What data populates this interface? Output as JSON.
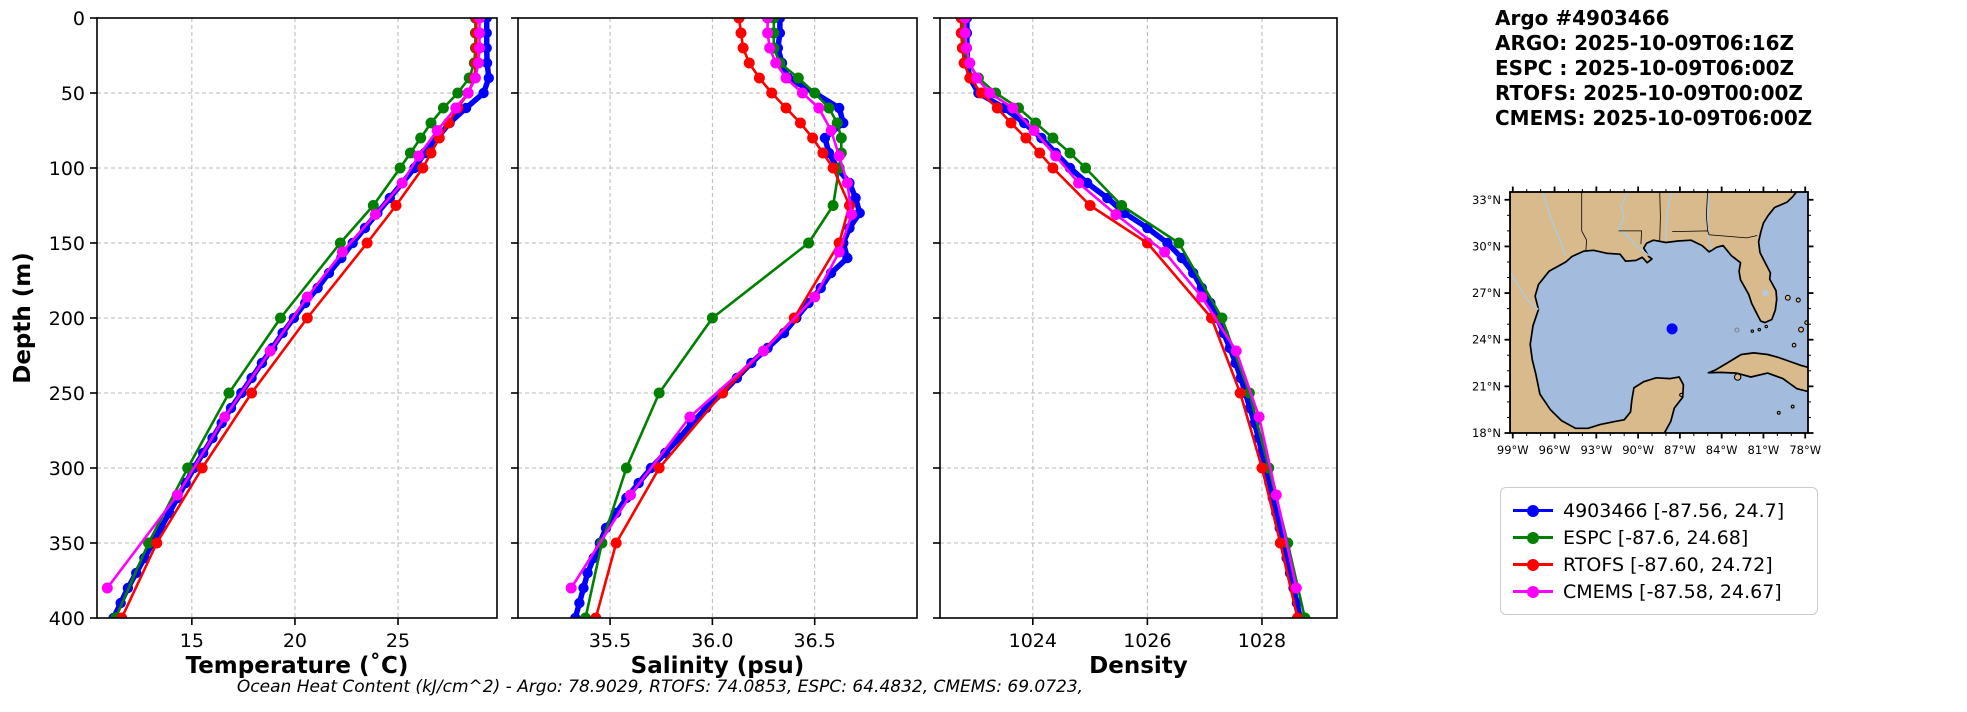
{
  "header": {
    "title": "Argo #4903466",
    "lines": [
      "ARGO: 2025-10-09T06:16Z",
      "ESPC : 2025-10-09T06:00Z",
      "RTOFS: 2025-10-09T00:00Z",
      "CMEMS: 2025-10-09T06:00Z"
    ]
  },
  "footer": "Ocean Heat Content (kJ/cm^2) - Argo: 78.9029,  RTOFS: 74.0853,  ESPC: 64.4832,  CMEMS: 69.0723,",
  "colors": {
    "argo": "#0000ff",
    "espc": "#008000",
    "rtofs": "#ff0000",
    "cmems": "#ff00ff",
    "grid": "#b8b8b8",
    "spine": "#000000",
    "land": "#d9ba8c",
    "water": "#a3bbdc",
    "lake": "#b7c9de",
    "river": "#a9cce3"
  },
  "depth_levels": {
    "argo": [
      0,
      10,
      20,
      30,
      40,
      50,
      60,
      70,
      80,
      90,
      100,
      110,
      120,
      130,
      140,
      150,
      160,
      170,
      180,
      190,
      200,
      210,
      220,
      230,
      240,
      250,
      260,
      270,
      280,
      290,
      300,
      310,
      320,
      330,
      340,
      350,
      360,
      370,
      380,
      390,
      400
    ],
    "model": [
      0,
      10,
      20,
      30,
      40,
      50,
      60,
      70,
      80,
      90,
      100,
      125,
      150,
      200,
      250,
      300,
      350,
      400
    ],
    "cmems": [
      0,
      10,
      20,
      30,
      40,
      50,
      60,
      75,
      92,
      110,
      131,
      156,
      186,
      222,
      266,
      318,
      380
    ]
  },
  "chart_data": [
    {
      "type": "line",
      "xlabel": "Temperature (˚C)",
      "ylabel": "Depth (m)",
      "xlim": [
        10.4,
        29.8
      ],
      "ylim": [
        0,
        400
      ],
      "xticks": [
        15,
        20,
        25
      ],
      "xtick_labels": [
        "15",
        "20",
        "25"
      ],
      "yticks": [
        0,
        50,
        100,
        150,
        200,
        250,
        300,
        350,
        400
      ],
      "ytick_labels": [
        "0",
        "50",
        "100",
        "150",
        "200",
        "250",
        "300",
        "350",
        "400"
      ],
      "show_ytick_labels": true,
      "series": [
        {
          "name": "4903466",
          "key": "argo",
          "levels": "argo",
          "color": "#0000ff",
          "lw": 5.5,
          "marker_r": 5.2,
          "values": [
            29.3,
            29.3,
            29.3,
            29.32,
            29.4,
            29.15,
            28.3,
            27.5,
            26.9,
            26.3,
            25.8,
            25.2,
            24.6,
            24.0,
            23.4,
            22.8,
            22.25,
            21.65,
            21.1,
            20.5,
            19.95,
            19.4,
            18.9,
            18.4,
            17.9,
            17.4,
            16.9,
            16.45,
            16.0,
            15.55,
            15.1,
            14.7,
            14.3,
            13.9,
            13.5,
            13.1,
            12.7,
            12.3,
            11.9,
            11.55,
            11.2
          ]
        },
        {
          "name": "ESPC",
          "key": "espc",
          "levels": "model",
          "color": "#008000",
          "lw": 2.6,
          "marker_r": 5.5,
          "values": [
            28.75,
            28.75,
            28.75,
            28.7,
            28.45,
            27.9,
            27.2,
            26.6,
            26.1,
            25.6,
            25.1,
            23.8,
            22.2,
            19.3,
            16.8,
            14.8,
            12.9,
            11.3
          ]
        },
        {
          "name": "RTOFS",
          "key": "rtofs",
          "levels": "model",
          "color": "#ff0000",
          "lw": 2.6,
          "marker_r": 5.5,
          "values": [
            28.8,
            28.8,
            28.8,
            28.78,
            28.7,
            28.4,
            27.9,
            27.45,
            27.0,
            26.6,
            26.2,
            24.9,
            23.5,
            20.6,
            17.9,
            15.5,
            13.3,
            11.6
          ]
        },
        {
          "name": "CMEMS",
          "key": "cmems",
          "levels": "cmems",
          "color": "#ff00ff",
          "lw": 2.6,
          "marker_r": 5.5,
          "values": [
            28.95,
            28.95,
            28.95,
            28.9,
            28.75,
            28.4,
            27.8,
            26.9,
            26.0,
            25.2,
            23.9,
            22.3,
            20.6,
            18.8,
            16.6,
            14.3,
            10.9
          ]
        }
      ]
    },
    {
      "type": "line",
      "xlabel": "Salinity (psu)",
      "ylabel": "",
      "xlim": [
        35.05,
        37.0
      ],
      "ylim": [
        0,
        400
      ],
      "xticks": [
        35.5,
        36.0,
        36.5
      ],
      "xtick_labels": [
        "35.5",
        "36.0",
        "36.5"
      ],
      "yticks": [
        0,
        50,
        100,
        150,
        200,
        250,
        300,
        350,
        400
      ],
      "ytick_labels": [],
      "show_ytick_labels": false,
      "series": [
        {
          "name": "4903466",
          "key": "argo",
          "levels": "argo",
          "color": "#0000ff",
          "lw": 5.5,
          "marker_r": 5.2,
          "values": [
            36.33,
            36.33,
            36.32,
            36.34,
            36.37,
            36.5,
            36.62,
            36.64,
            36.55,
            36.57,
            36.61,
            36.67,
            36.7,
            36.72,
            36.67,
            36.64,
            36.66,
            36.58,
            36.53,
            36.47,
            36.41,
            36.35,
            36.27,
            36.19,
            36.12,
            36.05,
            35.97,
            35.9,
            35.84,
            35.77,
            35.7,
            35.64,
            35.58,
            35.53,
            35.48,
            35.45,
            35.42,
            35.39,
            35.37,
            35.35,
            35.33
          ]
        },
        {
          "name": "ESPC",
          "key": "espc",
          "levels": "model",
          "color": "#008000",
          "lw": 2.6,
          "marker_r": 5.5,
          "values": [
            36.3,
            36.3,
            36.3,
            36.33,
            36.42,
            36.5,
            36.57,
            36.61,
            36.63,
            36.63,
            36.62,
            36.59,
            36.47,
            36.0,
            35.74,
            35.58,
            35.46,
            35.38
          ]
        },
        {
          "name": "RTOFS",
          "key": "rtofs",
          "levels": "model",
          "color": "#ff0000",
          "lw": 2.6,
          "marker_r": 5.5,
          "values": [
            36.13,
            36.14,
            36.15,
            36.18,
            36.23,
            36.29,
            36.36,
            36.43,
            36.49,
            36.54,
            36.59,
            36.67,
            36.62,
            36.4,
            36.05,
            35.74,
            35.53,
            35.43
          ]
        },
        {
          "name": "CMEMS",
          "key": "cmems",
          "levels": "cmems",
          "color": "#ff00ff",
          "lw": 2.6,
          "marker_r": 5.5,
          "values": [
            36.27,
            36.27,
            36.28,
            36.31,
            36.36,
            36.44,
            36.52,
            36.58,
            36.62,
            36.66,
            36.68,
            36.62,
            36.5,
            36.25,
            35.89,
            35.6,
            35.31
          ]
        }
      ]
    },
    {
      "type": "line",
      "xlabel": "Density",
      "ylabel": "",
      "xlim": [
        1022.38,
        1029.31
      ],
      "ylim": [
        0,
        400
      ],
      "xticks": [
        1024,
        1026,
        1028
      ],
      "xtick_labels": [
        "1024",
        "1026",
        "1028"
      ],
      "yticks": [
        0,
        50,
        100,
        150,
        200,
        250,
        300,
        350,
        400
      ],
      "ytick_labels": [],
      "show_ytick_labels": false,
      "series": [
        {
          "name": "4903466",
          "key": "argo",
          "levels": "argo",
          "color": "#0000ff",
          "lw": 5.5,
          "marker_r": 5.2,
          "values": [
            1022.85,
            1022.85,
            1022.85,
            1022.86,
            1022.9,
            1023.05,
            1023.5,
            1023.85,
            1024.15,
            1024.4,
            1024.65,
            1024.95,
            1025.3,
            1025.6,
            1026.0,
            1026.35,
            1026.6,
            1026.8,
            1026.95,
            1027.1,
            1027.22,
            1027.33,
            1027.44,
            1027.54,
            1027.63,
            1027.71,
            1027.79,
            1027.87,
            1027.94,
            1028.0,
            1028.07,
            1028.13,
            1028.19,
            1028.25,
            1028.31,
            1028.37,
            1028.43,
            1028.49,
            1028.55,
            1028.61,
            1028.67
          ]
        },
        {
          "name": "ESPC",
          "key": "espc",
          "levels": "model",
          "color": "#008000",
          "lw": 2.6,
          "marker_r": 5.5,
          "values": [
            1022.78,
            1022.78,
            1022.8,
            1022.88,
            1023.05,
            1023.35,
            1023.75,
            1024.05,
            1024.35,
            1024.65,
            1024.92,
            1025.55,
            1026.55,
            1027.3,
            1027.78,
            1028.12,
            1028.45,
            1028.75
          ]
        },
        {
          "name": "RTOFS",
          "key": "rtofs",
          "levels": "model",
          "color": "#ff0000",
          "lw": 2.6,
          "marker_r": 5.5,
          "values": [
            1022.75,
            1022.75,
            1022.77,
            1022.8,
            1022.9,
            1023.1,
            1023.38,
            1023.62,
            1023.88,
            1024.12,
            1024.35,
            1025.0,
            1026.0,
            1027.12,
            1027.62,
            1028.0,
            1028.32,
            1028.62
          ]
        },
        {
          "name": "CMEMS",
          "key": "cmems",
          "levels": "cmems",
          "color": "#ff00ff",
          "lw": 2.6,
          "marker_r": 5.5,
          "values": [
            1022.82,
            1022.82,
            1022.84,
            1022.9,
            1023.02,
            1023.25,
            1023.65,
            1024.02,
            1024.4,
            1024.8,
            1025.45,
            1026.3,
            1026.95,
            1027.55,
            1027.95,
            1028.25,
            1028.6
          ]
        }
      ]
    }
  ],
  "map": {
    "extent": {
      "lon_min": -99.2,
      "lon_max": -77.8,
      "lat_min": 18.0,
      "lat_max": 33.5
    },
    "lon_ticks": [
      {
        "v": -99,
        "label": "99°W"
      },
      {
        "v": -96,
        "label": "96°W"
      },
      {
        "v": -93,
        "label": "93°W"
      },
      {
        "v": -90,
        "label": "90°W"
      },
      {
        "v": -87,
        "label": "87°W"
      },
      {
        "v": -84,
        "label": "84°W"
      },
      {
        "v": -81,
        "label": "81°W"
      },
      {
        "v": -78,
        "label": "78°W"
      }
    ],
    "lat_ticks": [
      {
        "v": 18,
        "label": "18°N"
      },
      {
        "v": 21,
        "label": "21°N"
      },
      {
        "v": 24,
        "label": "24°N"
      },
      {
        "v": 27,
        "label": "27°N"
      },
      {
        "v": 30,
        "label": "30°N"
      },
      {
        "v": 33,
        "label": "33°N"
      }
    ],
    "marker": {
      "lon": -87.56,
      "lat": 24.7,
      "color": "#0000ff"
    }
  },
  "legend": {
    "items": [
      {
        "name": "argo",
        "label": "4903466 [-87.56, 24.7]",
        "color": "#0000ff"
      },
      {
        "name": "espc",
        "label": "ESPC [-87.6, 24.68]",
        "color": "#008000"
      },
      {
        "name": "rtofs",
        "label": "RTOFS [-87.60, 24.72]",
        "color": "#ff0000"
      },
      {
        "name": "cmems",
        "label": "CMEMS [-87.58, 24.67]",
        "color": "#ff00ff"
      }
    ]
  }
}
